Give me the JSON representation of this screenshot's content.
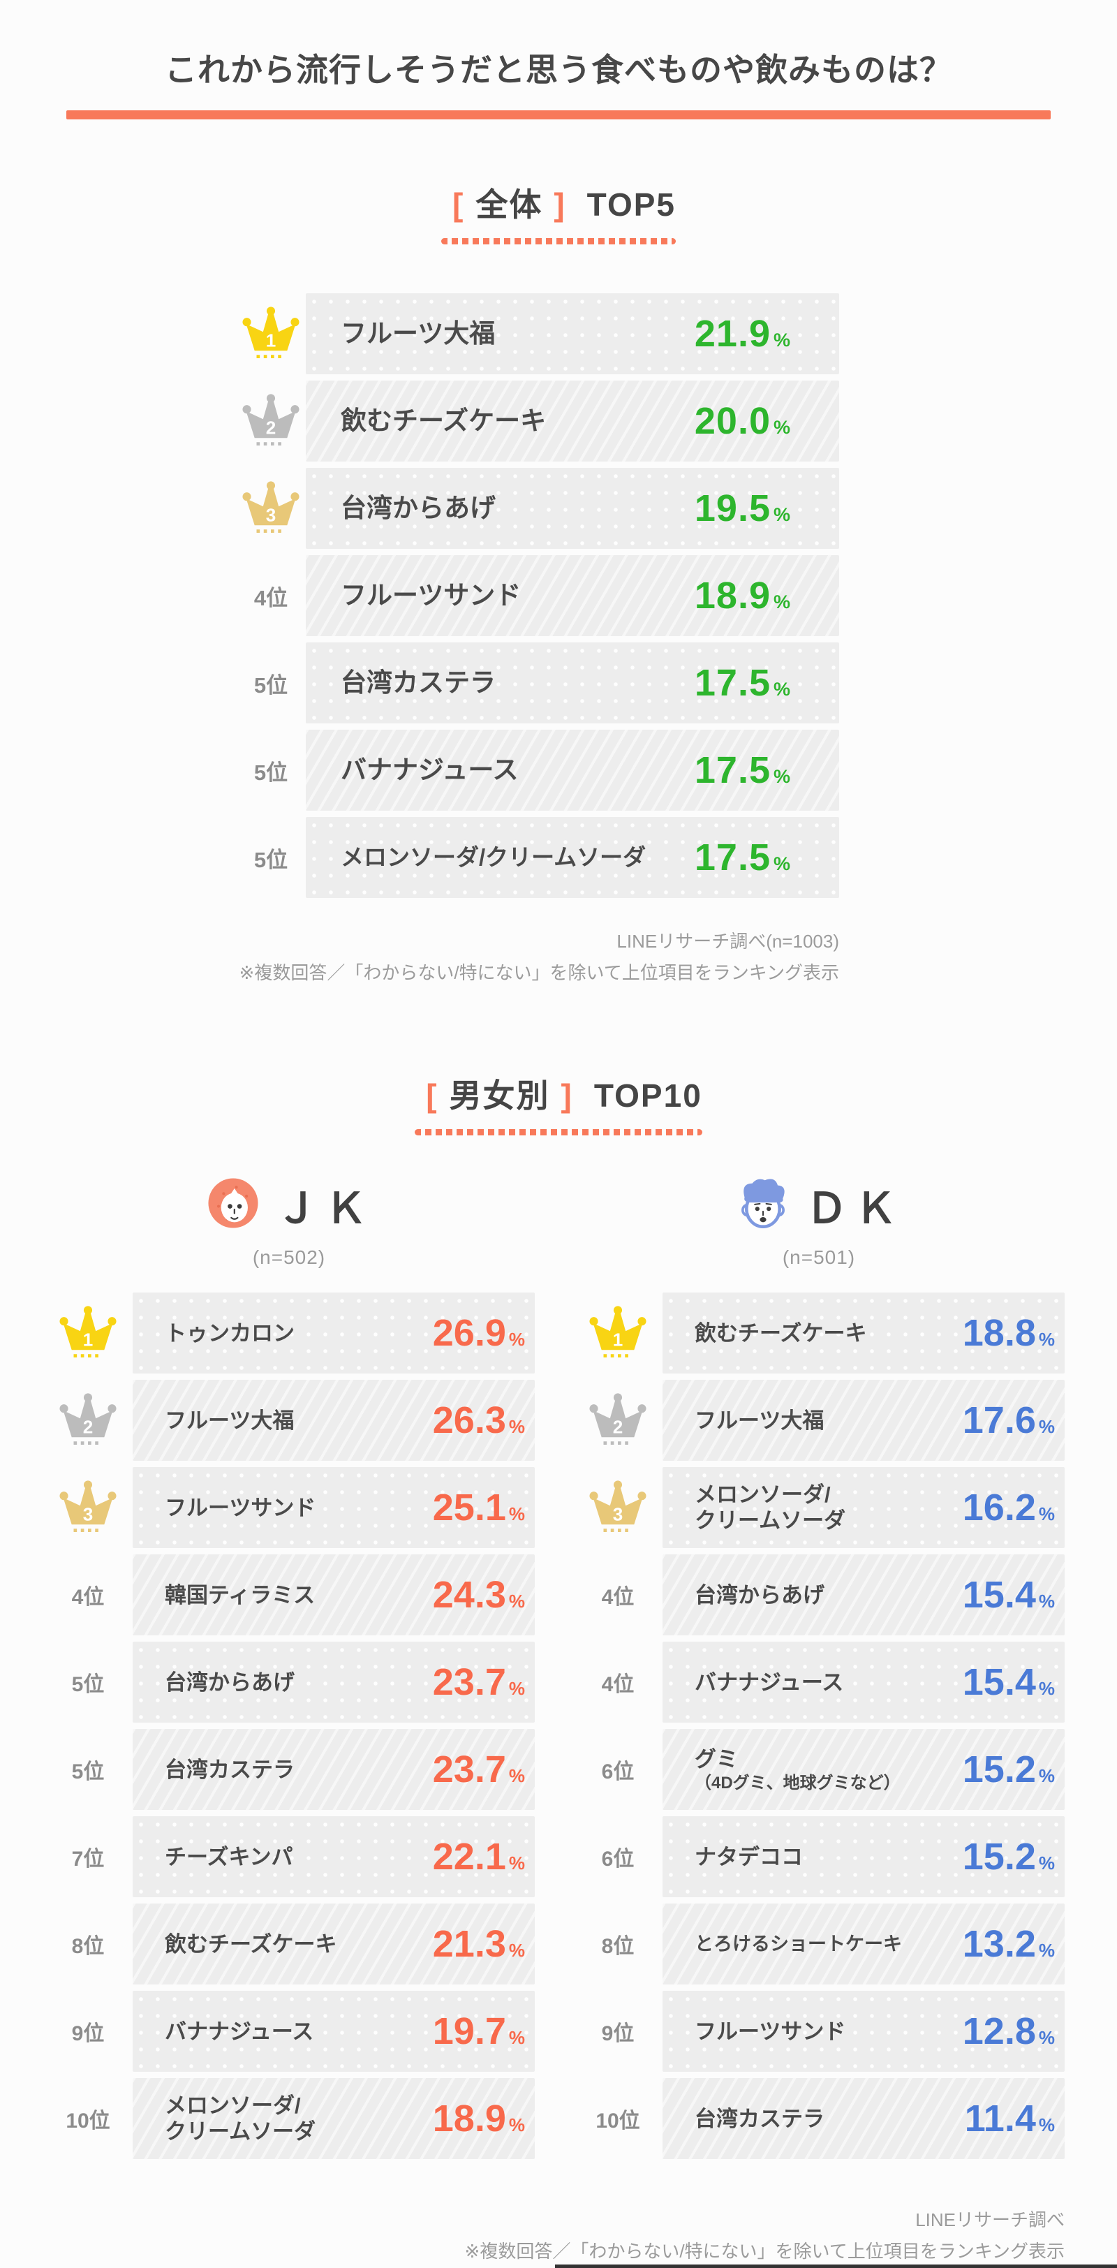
{
  "accent": "#f8795a",
  "crown_colors": {
    "gold": "#f8d413",
    "silver": "#bcbcbc",
    "bronze": "#e8c878"
  },
  "title": "これから流行しそうだと思う食べものや飲みものは？",
  "percent_sign": "%",
  "overall": {
    "bracket_open": "[",
    "bracket_label": "全体",
    "bracket_close": "]",
    "top_label": "TOP5",
    "value_color": "#2db52d",
    "rows": [
      {
        "rank_type": "gold",
        "rank_num": "1",
        "label": "フルーツ大福",
        "value": "21.9"
      },
      {
        "rank_type": "silver",
        "rank_num": "2",
        "label": "飲むチーズケーキ",
        "value": "20.0"
      },
      {
        "rank_type": "bronze",
        "rank_num": "3",
        "label": "台湾からあげ",
        "value": "19.5"
      },
      {
        "rank_type": "text",
        "rank": "4位",
        "label": "フルーツサンド",
        "value": "18.9"
      },
      {
        "rank_type": "text",
        "rank": "5位",
        "label": "台湾カステラ",
        "value": "17.5"
      },
      {
        "rank_type": "text",
        "rank": "5位",
        "label": "バナナジュース",
        "value": "17.5"
      },
      {
        "rank_type": "text",
        "rank": "5位",
        "label": "メロンソーダ/クリームソーダ",
        "value": "17.5",
        "long": true
      }
    ],
    "note1": "LINEリサーチ調べ(n=1003)",
    "note2": "※複数回答／「わからない/特にない」を除いて上位項目をランキング表示"
  },
  "gender": {
    "bracket_open": "[",
    "bracket_label": "男女別",
    "bracket_close": "]",
    "top_label": "TOP10",
    "note1": "LINEリサーチ調べ",
    "note2": "※複数回答／「わからない/特にない」を除いて上位項目をランキング表示",
    "columns": [
      {
        "id": "jk",
        "name": "ＪＫ",
        "n_label": "(n=502)",
        "avatar": "girl",
        "value_color": "#f8694b",
        "rows": [
          {
            "rank_type": "gold",
            "rank_num": "1",
            "label": "トゥンカロン",
            "value": "26.9"
          },
          {
            "rank_type": "silver",
            "rank_num": "2",
            "label": "フルーツ大福",
            "value": "26.3"
          },
          {
            "rank_type": "bronze",
            "rank_num": "3",
            "label": "フルーツサンド",
            "value": "25.1"
          },
          {
            "rank_type": "text",
            "rank": "4位",
            "label": "韓国ティラミス",
            "value": "24.3"
          },
          {
            "rank_type": "text",
            "rank": "5位",
            "label": "台湾からあげ",
            "value": "23.7"
          },
          {
            "rank_type": "text",
            "rank": "5位",
            "label": "台湾カステラ",
            "value": "23.7"
          },
          {
            "rank_type": "text",
            "rank": "7位",
            "label": "チーズキンパ",
            "value": "22.1"
          },
          {
            "rank_type": "text",
            "rank": "8位",
            "label": "飲むチーズケーキ",
            "value": "21.3"
          },
          {
            "rank_type": "text",
            "rank": "9位",
            "label": "バナナジュース",
            "value": "19.7"
          },
          {
            "rank_type": "text",
            "rank": "10位",
            "label": "メロンソーダ/",
            "label2": "クリームソーダ",
            "value": "18.9"
          }
        ]
      },
      {
        "id": "dk",
        "name": "ＤＫ",
        "n_label": "(n=501)",
        "avatar": "boy",
        "value_color": "#4a7ad6",
        "rows": [
          {
            "rank_type": "gold",
            "rank_num": "1",
            "label": "飲むチーズケーキ",
            "value": "18.8"
          },
          {
            "rank_type": "silver",
            "rank_num": "2",
            "label": "フルーツ大福",
            "value": "17.6"
          },
          {
            "rank_type": "bronze",
            "rank_num": "3",
            "label": "メロンソーダ/",
            "label2": "クリームソーダ",
            "value": "16.2"
          },
          {
            "rank_type": "text",
            "rank": "4位",
            "label": "台湾からあげ",
            "value": "15.4"
          },
          {
            "rank_type": "text",
            "rank": "4位",
            "label": "バナナジュース",
            "value": "15.4"
          },
          {
            "rank_type": "text",
            "rank": "6位",
            "label": "グミ",
            "label2": "（4Dグミ、地球グミなど）",
            "label2_small": true,
            "value": "15.2"
          },
          {
            "rank_type": "text",
            "rank": "6位",
            "label": "ナタデココ",
            "value": "15.2"
          },
          {
            "rank_type": "text",
            "rank": "8位",
            "label": "とろけるショートケーキ",
            "value": "13.2",
            "long": true
          },
          {
            "rank_type": "text",
            "rank": "9位",
            "label": "フルーツサンド",
            "value": "12.8"
          },
          {
            "rank_type": "text",
            "rank": "10位",
            "label": "台湾カステラ",
            "value": "11.4"
          }
        ]
      }
    ]
  },
  "chart_data": [
    {
      "type": "table",
      "title": "全体 TOP5",
      "unit": "%",
      "n": 1003,
      "columns": [
        "rank",
        "item",
        "percent"
      ],
      "rows": [
        [
          "1",
          "フルーツ大福",
          21.9
        ],
        [
          "2",
          "飲むチーズケーキ",
          20.0
        ],
        [
          "3",
          "台湾からあげ",
          19.5
        ],
        [
          "4位",
          "フルーツサンド",
          18.9
        ],
        [
          "5位",
          "台湾カステラ",
          17.5
        ],
        [
          "5位",
          "バナナジュース",
          17.5
        ],
        [
          "5位",
          "メロンソーダ/クリームソーダ",
          17.5
        ]
      ]
    },
    {
      "type": "table",
      "title": "男女別 TOP10 — ＪＫ",
      "unit": "%",
      "n": 502,
      "columns": [
        "rank",
        "item",
        "percent"
      ],
      "rows": [
        [
          "1",
          "トゥンカロン",
          26.9
        ],
        [
          "2",
          "フルーツ大福",
          26.3
        ],
        [
          "3",
          "フルーツサンド",
          25.1
        ],
        [
          "4位",
          "韓国ティラミス",
          24.3
        ],
        [
          "5位",
          "台湾からあげ",
          23.7
        ],
        [
          "5位",
          "台湾カステラ",
          23.7
        ],
        [
          "7位",
          "チーズキンパ",
          22.1
        ],
        [
          "8位",
          "飲むチーズケーキ",
          21.3
        ],
        [
          "9位",
          "バナナジュース",
          19.7
        ],
        [
          "10位",
          "メロンソーダ/クリームソーダ",
          18.9
        ]
      ]
    },
    {
      "type": "table",
      "title": "男女別 TOP10 — ＤＫ",
      "unit": "%",
      "n": 501,
      "columns": [
        "rank",
        "item",
        "percent"
      ],
      "rows": [
        [
          "1",
          "飲むチーズケーキ",
          18.8
        ],
        [
          "2",
          "フルーツ大福",
          17.6
        ],
        [
          "3",
          "メロンソーダ/クリームソーダ",
          16.2
        ],
        [
          "4位",
          "台湾からあげ",
          15.4
        ],
        [
          "4位",
          "バナナジュース",
          15.4
        ],
        [
          "6位",
          "グミ（4Dグミ、地球グミなど）",
          15.2
        ],
        [
          "6位",
          "ナタデココ",
          15.2
        ],
        [
          "8位",
          "とろけるショートケーキ",
          13.2
        ],
        [
          "9位",
          "フルーツサンド",
          12.8
        ],
        [
          "10位",
          "台湾カステラ",
          11.4
        ]
      ]
    }
  ]
}
